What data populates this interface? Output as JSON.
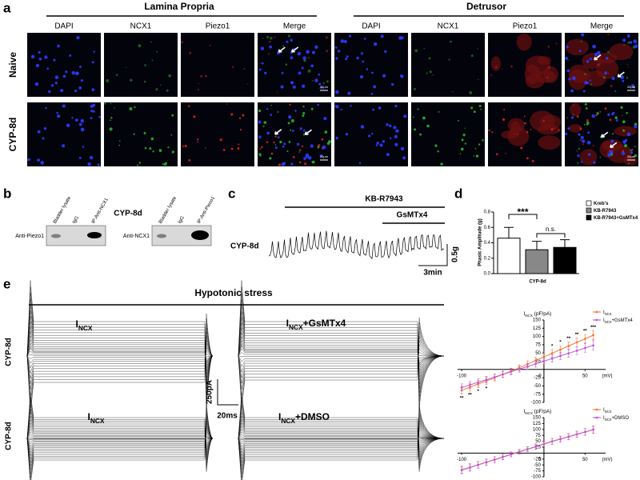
{
  "panel_a": {
    "letter": "a",
    "groups": [
      {
        "title": "Lamina Propria",
        "columns": [
          "DAPI",
          "NCX1",
          "Piezo1",
          "Merge"
        ]
      },
      {
        "title": "Detrusor",
        "columns": [
          "DAPI",
          "NCX1",
          "Piezo1",
          "Merge"
        ]
      }
    ],
    "rows": [
      "Naive",
      "CYP-8d"
    ],
    "scale_bar": "20μm"
  },
  "panel_b": {
    "letter": "b",
    "title": "CYP-8d",
    "blots": [
      {
        "lanes": [
          "Bladder lysate",
          "IgG",
          "IP:Anti-NCX1"
        ],
        "antibody": "Anti-Piezo1"
      },
      {
        "lanes": [
          "Bladder lysate",
          "IgG",
          "IP:Anti-Piezo1"
        ],
        "antibody": "Anti-NCX1"
      }
    ]
  },
  "panel_c": {
    "letter": "c",
    "drugs": [
      "KB-R7943",
      "GsMTx4"
    ],
    "row_label": "CYP-8d",
    "scale_y": "0.5g",
    "scale_x": "3min"
  },
  "panel_e": {
    "letter": "e",
    "title": "Hypotonic stress",
    "row_labels": [
      "CYP-8d",
      "CYP-8d"
    ],
    "traces": [
      {
        "main": "I",
        "sub": "NCX"
      },
      {
        "main": "I",
        "sub": "NCX",
        "suffix": "+GsMTx4"
      },
      {
        "main": "I",
        "sub": "NCX"
      },
      {
        "main": "I",
        "sub": "NCX",
        "suffix": "+DMSO"
      }
    ],
    "scale_y": "250pA",
    "scale_x": "20ms"
  },
  "chart_data": [
    {
      "type": "bar",
      "letter": "d",
      "categories": [
        "CYP-8d"
      ],
      "y_label": "Phasic Amplitude (g)",
      "ylim": [
        0,
        0.8
      ],
      "yticks": [
        {
          "value": 0,
          "label": "0.0"
        },
        {
          "value": 0.2,
          "label": "0.2"
        },
        {
          "value": 0.4,
          "label": "0.4"
        },
        {
          "value": 0.6,
          "label": "0.6"
        },
        {
          "value": 0.8,
          "label": "0.8"
        }
      ],
      "series": [
        {
          "name": "Kreb's",
          "color": "#ffffff",
          "values": [
            0.46
          ],
          "errors": [
            0.14
          ]
        },
        {
          "name": "KB-R7943",
          "color": "#888888",
          "values": [
            0.31
          ],
          "errors": [
            0.11
          ]
        },
        {
          "name": "KB-R7943+GsMTx4",
          "color": "#000000",
          "values": [
            0.34
          ],
          "errors": [
            0.1
          ]
        }
      ],
      "annotations": [
        "***",
        "n.s."
      ]
    },
    {
      "type": "line",
      "title": {
        "main": "I",
        "sub": "NCX",
        "suffix": " (pF/pA)"
      },
      "x_unit": "(mV)",
      "x": [
        -100,
        -90,
        -80,
        -70,
        -60,
        -50,
        -40,
        -30,
        -20,
        -10,
        0,
        10,
        20,
        30,
        40,
        50,
        60
      ],
      "xlim": [
        -105,
        75
      ],
      "xticks": [
        -100,
        0,
        50
      ],
      "ylim": [
        -100,
        150
      ],
      "yticks": [
        150,
        125,
        100,
        75,
        50,
        25,
        -25,
        -50,
        -75,
        -100
      ],
      "series": [
        {
          "name": {
            "main": "I",
            "sub": "NCX"
          },
          "color": "#f47a3a",
          "values": [
            -63,
            -54,
            -44,
            -35,
            -25,
            -15,
            -5,
            5,
            16,
            27,
            38,
            49,
            60,
            71,
            82,
            93,
            104
          ],
          "errors": [
            12,
            12,
            11,
            11,
            10,
            10,
            9,
            9,
            10,
            10,
            11,
            11,
            12,
            12,
            13,
            13,
            14
          ]
        },
        {
          "name": {
            "main": "I",
            "sub": "NCX",
            "suffix": "+GsMTx4"
          },
          "color": "#c05ad8",
          "values": [
            -55,
            -47,
            -39,
            -31,
            -23,
            -15,
            -7,
            1,
            9,
            17,
            25,
            33,
            41,
            49,
            57,
            65,
            73
          ],
          "errors": [
            11,
            11,
            10,
            10,
            9,
            9,
            9,
            9,
            9,
            10,
            10,
            11,
            11,
            12,
            12,
            13,
            14
          ]
        }
      ],
      "annotations": [
        {
          "text": "**",
          "x": -100
        },
        {
          "text": "**",
          "x": -90
        },
        {
          "text": "*",
          "x": -80
        },
        {
          "text": "*",
          "x": -70
        },
        {
          "text": "*",
          "x": 10
        },
        {
          "text": "*",
          "x": 20
        },
        {
          "text": "**",
          "x": 30
        },
        {
          "text": "**",
          "x": 40
        },
        {
          "text": "**",
          "x": 50
        },
        {
          "text": "***",
          "x": 60
        }
      ]
    },
    {
      "type": "line",
      "title": {
        "main": "I",
        "sub": "NCX",
        "suffix": " (pF/pA)"
      },
      "x_unit": "(mV)",
      "x": [
        -100,
        -90,
        -80,
        -70,
        -60,
        -50,
        -40,
        -30,
        -20,
        -10,
        0,
        10,
        20,
        30,
        40,
        50,
        60
      ],
      "xlim": [
        -105,
        75
      ],
      "xticks": [
        -100,
        0,
        50
      ],
      "ylim": [
        -100,
        150
      ],
      "yticks": [
        150,
        125,
        100,
        75,
        50,
        25,
        -25,
        -50,
        -75,
        -100
      ],
      "series": [
        {
          "name": {
            "main": "I",
            "sub": "NCX"
          },
          "color": "#f47a3a",
          "values": [
            -70,
            -60,
            -49,
            -38,
            -27,
            -16,
            -5,
            6,
            17,
            28,
            39,
            50,
            60,
            70,
            80,
            90,
            100
          ],
          "errors": [
            15,
            15,
            14,
            13,
            12,
            11,
            10,
            10,
            10,
            11,
            11,
            12,
            12,
            13,
            13,
            14,
            15
          ]
        },
        {
          "name": {
            "main": "I",
            "sub": "NCX",
            "suffix": "+DMSO"
          },
          "color": "#c05ad8",
          "values": [
            -72,
            -61,
            -50,
            -39,
            -28,
            -17,
            -6,
            5,
            16,
            27,
            38,
            49,
            59,
            69,
            79,
            89,
            99
          ],
          "errors": [
            15,
            15,
            14,
            13,
            12,
            11,
            10,
            10,
            10,
            11,
            11,
            12,
            12,
            13,
            13,
            14,
            15
          ]
        }
      ],
      "annotations": []
    }
  ]
}
